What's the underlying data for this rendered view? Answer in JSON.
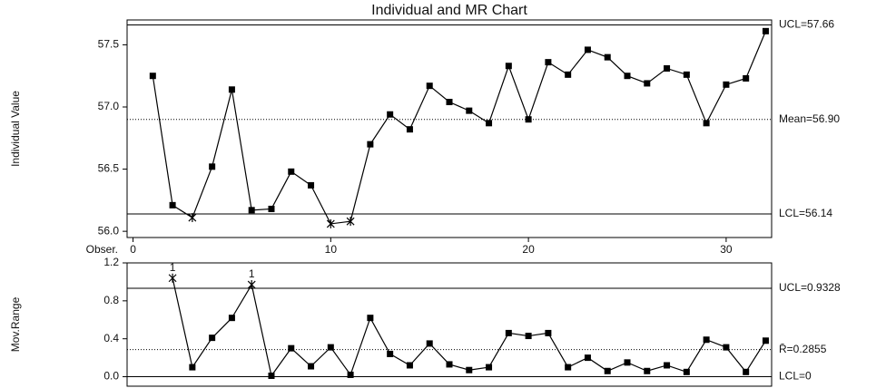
{
  "chart_data": [
    {
      "type": "line",
      "title": "Individual and MR Chart",
      "y_label": "Individual Value",
      "x_label": "Obser.",
      "x": [
        1,
        2,
        3,
        4,
        5,
        6,
        7,
        8,
        9,
        10,
        11,
        12,
        13,
        14,
        15,
        16,
        17,
        18,
        19,
        20,
        21,
        22,
        23,
        24,
        25,
        26,
        27,
        28,
        29,
        30,
        31,
        32
      ],
      "series": [
        {
          "color": "#000000",
          "values": [
            57.25,
            56.21,
            56.11,
            56.52,
            57.14,
            56.17,
            56.18,
            56.48,
            56.37,
            56.06,
            56.08,
            56.7,
            56.94,
            56.82,
            57.17,
            57.04,
            56.97,
            56.87,
            57.33,
            56.9,
            57.36,
            57.26,
            57.46,
            57.4,
            57.25,
            57.19,
            57.31,
            57.26,
            56.87,
            57.18,
            57.23,
            57.61
          ]
        }
      ],
      "xlim": [
        -0.3,
        32.3
      ],
      "xticks": [
        0,
        10,
        20,
        30
      ],
      "ylim": [
        55.95,
        57.7
      ],
      "yticks": [
        {
          "value": 56,
          "label": "56.0"
        },
        {
          "value": 56.5,
          "label": "56.5"
        },
        {
          "value": 57,
          "label": "57.0"
        },
        57.5
      ],
      "limits": [
        {
          "value": 57.66,
          "label": "UCL=57.66",
          "style": "solid"
        },
        {
          "value": 56.9,
          "label": "Mean=56.90",
          "style": "dotted"
        },
        {
          "value": 56.14,
          "label": "LCL=56.14",
          "style": "solid"
        }
      ]
    },
    {
      "type": "line",
      "y_label": "Mov.Range",
      "x": [
        2,
        3,
        4,
        5,
        6,
        7,
        8,
        9,
        10,
        11,
        12,
        13,
        14,
        15,
        16,
        17,
        18,
        19,
        20,
        21,
        22,
        23,
        24,
        25,
        26,
        27,
        28,
        29,
        30,
        31,
        32
      ],
      "series": [
        {
          "color": "#000000",
          "values": [
            1.04,
            0.1,
            0.41,
            0.62,
            0.97,
            0.01,
            0.3,
            0.11,
            0.31,
            0.02,
            0.62,
            0.24,
            0.12,
            0.35,
            0.13,
            0.07,
            0.1,
            0.46,
            0.43,
            0.46,
            0.1,
            0.2,
            0.06,
            0.15,
            0.06,
            0.12,
            0.05,
            0.39,
            0.31,
            0.05,
            0.38
          ]
        }
      ],
      "xlim": [
        -0.3,
        32.3
      ],
      "ylim": [
        -0.1,
        1.2
      ],
      "yticks": [
        {
          "value": 0,
          "label": "0.0"
        },
        0.4,
        0.8,
        1.2
      ],
      "limits": [
        {
          "value": 0.9328,
          "label": "UCL=0.9328",
          "style": "solid"
        },
        {
          "value": 0.2855,
          "label": "R̄=0.2855",
          "style": "dotted"
        },
        {
          "value": 0,
          "label": "LCL=0",
          "style": "solid"
        }
      ],
      "flag_label": "1"
    }
  ]
}
